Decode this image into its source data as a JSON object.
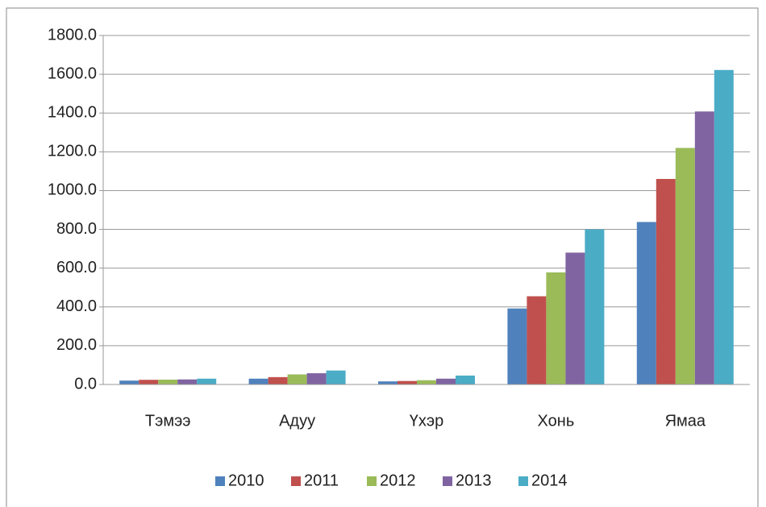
{
  "chart_data": {
    "type": "bar",
    "categories": [
      "Тэмээ",
      "Адуу",
      "Үхэр",
      "Хонь",
      "Ямаа"
    ],
    "series": [
      {
        "name": "2010",
        "color": "#4f81bd",
        "values": [
          20,
          30,
          16,
          392,
          838
        ]
      },
      {
        "name": "2011",
        "color": "#c0504d",
        "values": [
          24,
          38,
          18,
          455,
          1060
        ]
      },
      {
        "name": "2012",
        "color": "#9bbb59",
        "values": [
          25,
          52,
          22,
          578,
          1220
        ]
      },
      {
        "name": "2013",
        "color": "#8064a2",
        "values": [
          26,
          58,
          30,
          680,
          1408
        ]
      },
      {
        "name": "2014",
        "color": "#4bacc6",
        "values": [
          30,
          72,
          46,
          800,
          1622
        ]
      }
    ],
    "ylim": [
      0,
      1800
    ],
    "yticks": [
      {
        "value": 0,
        "label": "0.0"
      },
      {
        "value": 200,
        "label": "200.0"
      },
      {
        "value": 400,
        "label": "400.0"
      },
      {
        "value": 600,
        "label": "600.0"
      },
      {
        "value": 800,
        "label": "800.0"
      },
      {
        "value": 1000,
        "label": "1000.0"
      },
      {
        "value": 1200,
        "label": "1200.0"
      },
      {
        "value": 1400,
        "label": "1400.0"
      },
      {
        "value": 1600,
        "label": "1600.0"
      },
      {
        "value": 1800,
        "label": "1800.0"
      }
    ],
    "grid": true,
    "legend": "bottom"
  }
}
